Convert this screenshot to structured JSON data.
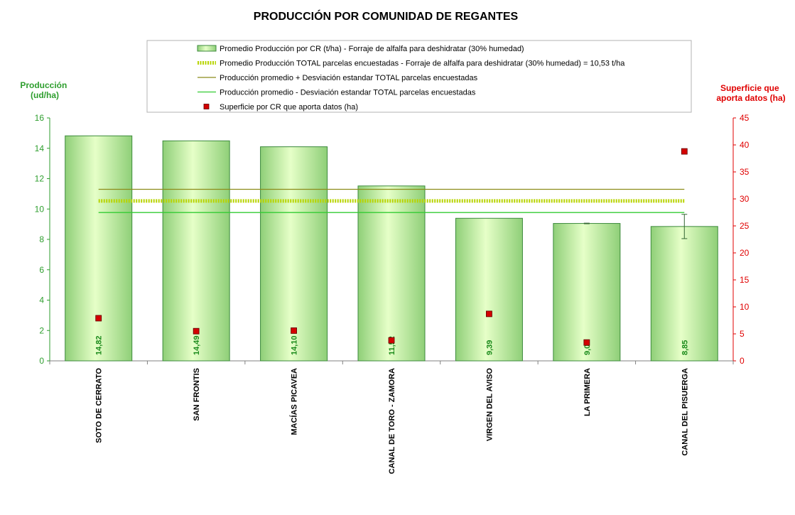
{
  "chart_data": {
    "type": "bar",
    "title": "PRODUCCIÓN POR COMUNIDAD DE REGANTES",
    "y_left_label": [
      "Producción",
      "(ud/ha)"
    ],
    "y_right_label": [
      "Superficie que",
      "aporta datos (ha)"
    ],
    "categories": [
      "SOTO DE CERRATO",
      "SAN FRONTIS",
      "MACÍAS PICAVEA",
      "CANAL DE TORO - ZAMORA",
      "VIRGEN DEL AVISO",
      "LA PRIMERA",
      "CANAL DEL PISUERGA"
    ],
    "series": [
      {
        "name": "Promedio Producción por CR (t/ha) - Forraje de alfalfa para deshidratar (30% humedad)",
        "axis": "left",
        "values": [
          14.82,
          14.49,
          14.1,
          11.52,
          9.39,
          9.05,
          8.85
        ],
        "labels": [
          "14,82",
          "14,49",
          "14,10",
          "11,52",
          "9,39",
          "9,05",
          "8,85"
        ],
        "error": [
          null,
          null,
          null,
          null,
          null,
          0.02,
          0.8
        ]
      },
      {
        "name": "Superficie por CR que aporta datos (ha)",
        "axis": "right",
        "values": [
          7.9,
          5.5,
          5.6,
          3.8,
          8.7,
          3.4,
          38.8
        ]
      }
    ],
    "reference_lines": [
      {
        "name": "Promedio Producción TOTAL parcelas encuestadas - Forraje de alfalfa para deshidratar (30% humedad) = 10,53 t/ha",
        "value": 10.53,
        "style": "dotted-thick"
      },
      {
        "name": "Producción promedio + Desviación estandar TOTAL parcelas encuestadas",
        "value": 11.3,
        "style": "olive"
      },
      {
        "name": "Producción promedio - Desviación estandar TOTAL parcelas encuestadas",
        "value": 9.77,
        "style": "green"
      }
    ],
    "y_left": {
      "min": 0,
      "max": 16,
      "ticks": [
        0,
        2,
        4,
        6,
        8,
        10,
        12,
        14,
        16
      ]
    },
    "y_right": {
      "min": 0,
      "max": 45,
      "ticks": [
        0,
        5,
        10,
        15,
        20,
        25,
        30,
        35,
        40,
        45
      ]
    },
    "legend_position": "top-center",
    "grid": false,
    "colors": {
      "left_axis": "#2e9e2e",
      "right_axis": "#e00000",
      "bar_edge": "#3c8a3c",
      "marker": "#d40000",
      "ref_olive": "#8c8c1a",
      "ref_green": "#33cc33",
      "ref_dotted": "#b8d400"
    }
  }
}
